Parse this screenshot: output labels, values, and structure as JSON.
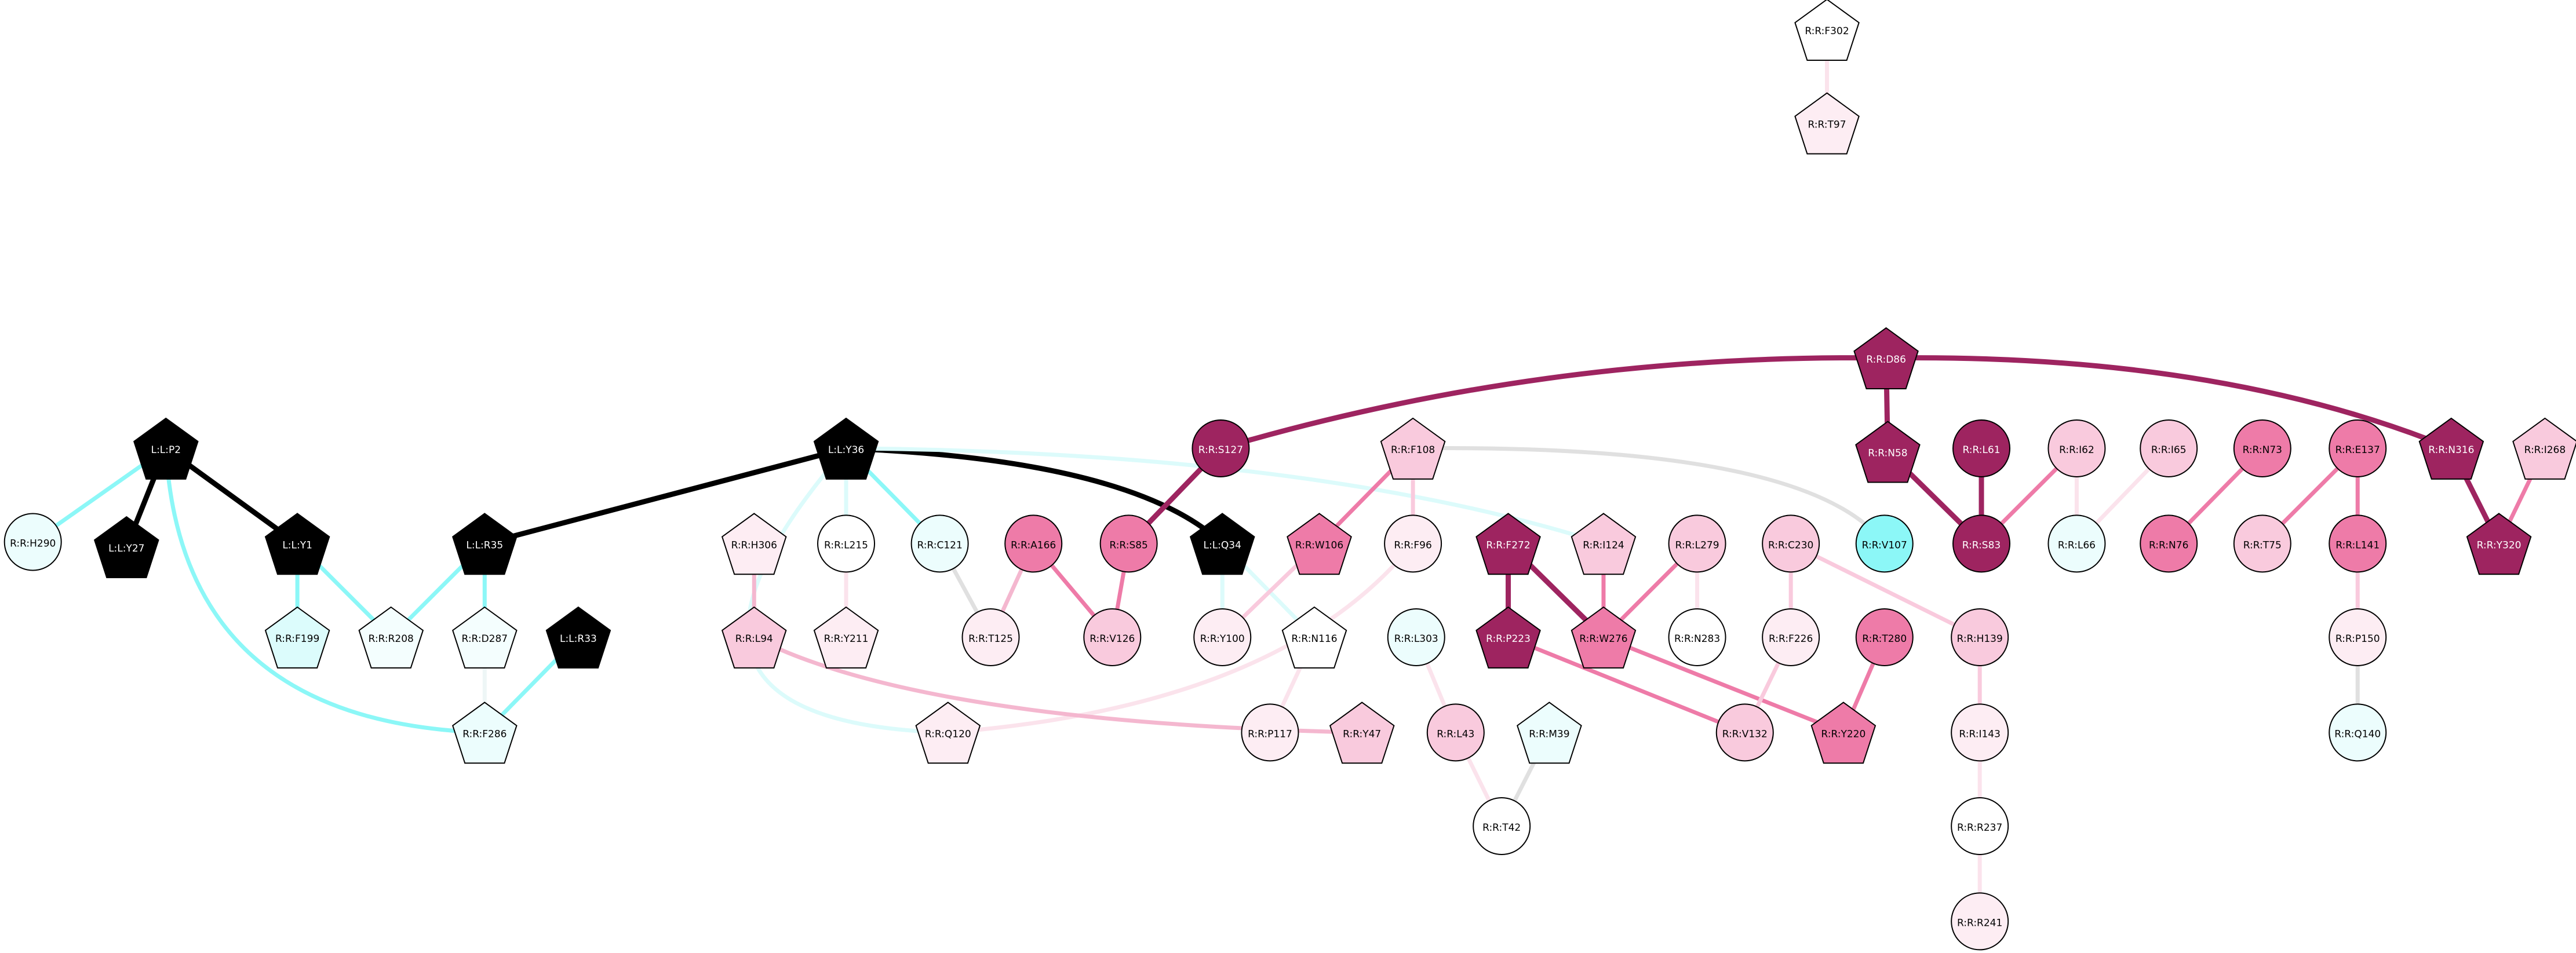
{
  "nodes": [
    {
      "label": "R:R:F302",
      "shape": "pentagon",
      "fill": "#ffffff"
    },
    {
      "label": "R:R:T97",
      "shape": "pentagon",
      "fill": "#fdedf3"
    },
    {
      "label": "R:R:D86",
      "shape": "pentagon",
      "fill": "#9e2460"
    },
    {
      "label": "L:L:P2",
      "shape": "pentagon",
      "fill": "#000000"
    },
    {
      "label": "R:R:H290",
      "shape": "circle",
      "fill": "#ecfdfd"
    },
    {
      "label": "L:L:Y27",
      "shape": "pentagon",
      "fill": "#000000"
    },
    {
      "label": "L:L:Y1",
      "shape": "pentagon",
      "fill": "#000000"
    },
    {
      "label": "L:L:Y36",
      "shape": "pentagon",
      "fill": "#000000"
    },
    {
      "label": "L:L:R35",
      "shape": "pentagon",
      "fill": "#000000"
    },
    {
      "label": "R:R:S127",
      "shape": "circle",
      "fill": "#9e2460"
    },
    {
      "label": "R:R:F108",
      "shape": "pentagon",
      "fill": "#f9cadd"
    },
    {
      "label": "R:R:N58",
      "shape": "pentagon",
      "fill": "#9e2460"
    },
    {
      "label": "R:R:L61",
      "shape": "circle",
      "fill": "#9e2460"
    },
    {
      "label": "R:R:I62",
      "shape": "circle",
      "fill": "#f9cadd"
    },
    {
      "label": "R:R:I65",
      "shape": "circle",
      "fill": "#f9cadd"
    },
    {
      "label": "R:R:N73",
      "shape": "circle",
      "fill": "#ee7ba8"
    },
    {
      "label": "R:R:E137",
      "shape": "circle",
      "fill": "#ee7ba8"
    },
    {
      "label": "R:R:N316",
      "shape": "pentagon",
      "fill": "#9e2460"
    },
    {
      "label": "R:R:I268",
      "shape": "pentagon",
      "fill": "#f9cadd"
    },
    {
      "label": "R:R:H306",
      "shape": "pentagon",
      "fill": "#fdedf3"
    },
    {
      "label": "R:R:L215",
      "shape": "circle",
      "fill": "#ffffff"
    },
    {
      "label": "R:R:C121",
      "shape": "circle",
      "fill": "#ecfdfd"
    },
    {
      "label": "R:R:A166",
      "shape": "circle",
      "fill": "#ee7ba8"
    },
    {
      "label": "R:R:S85",
      "shape": "circle",
      "fill": "#ee7ba8"
    },
    {
      "label": "L:L:Q34",
      "shape": "pentagon",
      "fill": "#000000"
    },
    {
      "label": "R:R:W106",
      "shape": "pentagon",
      "fill": "#ee7ba8"
    },
    {
      "label": "R:R:F96",
      "shape": "circle",
      "fill": "#fdedf3"
    },
    {
      "label": "R:R:F272",
      "shape": "pentagon",
      "fill": "#9e2460"
    },
    {
      "label": "R:R:I124",
      "shape": "pentagon",
      "fill": "#f9cadd"
    },
    {
      "label": "R:R:L279",
      "shape": "circle",
      "fill": "#f9cadd"
    },
    {
      "label": "R:R:C230",
      "shape": "circle",
      "fill": "#f9cadd"
    },
    {
      "label": "R:R:V107",
      "shape": "circle",
      "fill": "#8cf7f7"
    },
    {
      "label": "R:R:S83",
      "shape": "circle",
      "fill": "#9e2460"
    },
    {
      "label": "R:R:L66",
      "shape": "circle",
      "fill": "#ecfdfd"
    },
    {
      "label": "R:R:N76",
      "shape": "circle",
      "fill": "#ee7ba8"
    },
    {
      "label": "R:R:T75",
      "shape": "circle",
      "fill": "#f9cadd"
    },
    {
      "label": "R:R:L141",
      "shape": "circle",
      "fill": "#ee7ba8"
    },
    {
      "label": "R:R:Y320",
      "shape": "pentagon",
      "fill": "#9e2460"
    },
    {
      "label": "R:R:F199",
      "shape": "pentagon",
      "fill": "#dcfcfc"
    },
    {
      "label": "R:R:R208",
      "shape": "pentagon",
      "fill": "#f4fefe"
    },
    {
      "label": "R:R:D287",
      "shape": "pentagon",
      "fill": "#f4fefe"
    },
    {
      "label": "L:L:R33",
      "shape": "pentagon",
      "fill": "#000000"
    },
    {
      "label": "R:R:L94",
      "shape": "pentagon",
      "fill": "#f9cadd"
    },
    {
      "label": "R:R:Y211",
      "shape": "pentagon",
      "fill": "#fdedf3"
    },
    {
      "label": "R:R:T125",
      "shape": "circle",
      "fill": "#fdedf3"
    },
    {
      "label": "R:R:V126",
      "shape": "circle",
      "fill": "#f9cadd"
    },
    {
      "label": "R:R:Y100",
      "shape": "circle",
      "fill": "#fdedf3"
    },
    {
      "label": "R:R:N116",
      "shape": "pentagon",
      "fill": "#ffffff"
    },
    {
      "label": "R:R:L303",
      "shape": "circle",
      "fill": "#ecfdfd"
    },
    {
      "label": "R:R:P223",
      "shape": "pentagon",
      "fill": "#9e2460"
    },
    {
      "label": "R:R:W276",
      "shape": "pentagon",
      "fill": "#ee7ba8"
    },
    {
      "label": "R:R:N283",
      "shape": "circle",
      "fill": "#ffffff"
    },
    {
      "label": "R:R:F226",
      "shape": "circle",
      "fill": "#fdedf3"
    },
    {
      "label": "R:R:T280",
      "shape": "circle",
      "fill": "#ee7ba8"
    },
    {
      "label": "R:R:H139",
      "shape": "circle",
      "fill": "#f9cadd"
    },
    {
      "label": "R:R:P150",
      "shape": "circle",
      "fill": "#fdedf3"
    },
    {
      "label": "R:R:F286",
      "shape": "pentagon",
      "fill": "#ecfdfd"
    },
    {
      "label": "R:R:Q120",
      "shape": "pentagon",
      "fill": "#fdedf3"
    },
    {
      "label": "R:R:P117",
      "shape": "circle",
      "fill": "#fdedf3"
    },
    {
      "label": "R:R:Y47",
      "shape": "pentagon",
      "fill": "#f9cadd"
    },
    {
      "label": "R:R:L43",
      "shape": "circle",
      "fill": "#f9cadd"
    },
    {
      "label": "R:R:V132",
      "shape": "circle",
      "fill": "#f9cadd"
    },
    {
      "label": "R:R:Y220",
      "shape": "pentagon",
      "fill": "#ee7ba8"
    },
    {
      "label": "R:R:I143",
      "shape": "circle",
      "fill": "#fdedf3"
    },
    {
      "label": "R:R:Q140",
      "shape": "circle",
      "fill": "#ecfdfd"
    },
    {
      "label": "R:R:M39",
      "shape": "pentagon",
      "fill": "#ecfdfd"
    },
    {
      "label": "R:R:T42",
      "shape": "circle",
      "fill": "#ffffff"
    },
    {
      "label": "R:R:R237",
      "shape": "circle",
      "fill": "#ffffff"
    },
    {
      "label": "R:R:R241",
      "shape": "circle",
      "fill": "#fdedf3"
    }
  ],
  "edges": [
    {
      "source": 0,
      "target": 1,
      "color": "#fbe3ec"
    },
    {
      "source": 2,
      "target": 9,
      "color": "#9e2460"
    },
    {
      "source": 2,
      "target": 11,
      "color": "#9e2460"
    },
    {
      "source": 2,
      "target": 17,
      "color": "#9e2460"
    },
    {
      "source": 3,
      "target": 4,
      "color": "#8cf7f7"
    },
    {
      "source": 3,
      "target": 5,
      "color": "#000000"
    },
    {
      "source": 3,
      "target": 6,
      "color": "#000000"
    },
    {
      "source": 3,
      "target": 56,
      "color": "#8cf7f7"
    },
    {
      "source": 6,
      "target": 38,
      "color": "#8cf7f7"
    },
    {
      "source": 6,
      "target": 39,
      "color": "#8cf7f7"
    },
    {
      "source": 8,
      "target": 39,
      "color": "#8cf7f7"
    },
    {
      "source": 8,
      "target": 40,
      "color": "#8cf7f7"
    },
    {
      "source": 8,
      "target": 7,
      "color": "#000000"
    },
    {
      "source": 40,
      "target": 56,
      "color": "#eef6f6"
    },
    {
      "source": 41,
      "target": 56,
      "color": "#8cf7f7"
    },
    {
      "source": 7,
      "target": 20,
      "color": "#dcfbfb"
    },
    {
      "source": 7,
      "target": 21,
      "color": "#8cf7f7"
    },
    {
      "source": 7,
      "target": 24,
      "color": "#000000"
    },
    {
      "source": 7,
      "target": 28,
      "color": "#dcfbfb"
    },
    {
      "source": 7,
      "target": 57,
      "color": "#dcfbfb"
    },
    {
      "source": 19,
      "target": 42,
      "color": "#f4b7cf"
    },
    {
      "source": 20,
      "target": 43,
      "color": "#fbe3ec"
    },
    {
      "source": 21,
      "target": 44,
      "color": "#e0e0e0"
    },
    {
      "source": 22,
      "target": 44,
      "color": "#f4b7cf"
    },
    {
      "source": 22,
      "target": 45,
      "color": "#ee7ba8"
    },
    {
      "source": 23,
      "target": 45,
      "color": "#ee7ba8"
    },
    {
      "source": 9,
      "target": 23,
      "color": "#9e2460"
    },
    {
      "source": 24,
      "target": 46,
      "color": "#dcfbfb"
    },
    {
      "source": 24,
      "target": 47,
      "color": "#dcfbfb"
    },
    {
      "source": 25,
      "target": 46,
      "color": "#f9cadd"
    },
    {
      "source": 10,
      "target": 25,
      "color": "#ee7ba8"
    },
    {
      "source": 10,
      "target": 26,
      "color": "#f9cadd"
    },
    {
      "source": 10,
      "target": 31,
      "color": "#e0e0e0"
    },
    {
      "source": 26,
      "target": 57,
      "color": "#fbe3ec"
    },
    {
      "source": 42,
      "target": 59,
      "color": "#f4b7cf"
    },
    {
      "source": 47,
      "target": 58,
      "color": "#fbe3ec"
    },
    {
      "source": 48,
      "target": 60,
      "color": "#fbe3ec"
    },
    {
      "source": 65,
      "target": 66,
      "color": "#e0e0e0"
    },
    {
      "source": 60,
      "target": 66,
      "color": "#fbe3ec"
    },
    {
      "source": 27,
      "target": 49,
      "color": "#9e2460"
    },
    {
      "source": 27,
      "target": 50,
      "color": "#9e2460"
    },
    {
      "source": 28,
      "target": 50,
      "color": "#ee7ba8"
    },
    {
      "source": 29,
      "target": 50,
      "color": "#ee7ba8"
    },
    {
      "source": 29,
      "target": 51,
      "color": "#fbe3ec"
    },
    {
      "source": 49,
      "target": 61,
      "color": "#ee7ba8"
    },
    {
      "source": 50,
      "target": 62,
      "color": "#ee7ba8"
    },
    {
      "source": 53,
      "target": 62,
      "color": "#ee7ba8"
    },
    {
      "source": 30,
      "target": 52,
      "color": "#f9cadd"
    },
    {
      "source": 30,
      "target": 54,
      "color": "#f9cadd"
    },
    {
      "source": 52,
      "target": 61,
      "color": "#f9cadd"
    },
    {
      "source": 54,
      "target": 63,
      "color": "#f9cadd"
    },
    {
      "source": 63,
      "target": 67,
      "color": "#fbe3ec"
    },
    {
      "source": 67,
      "target": 68,
      "color": "#fbe3ec"
    },
    {
      "source": 11,
      "target": 32,
      "color": "#9e2460"
    },
    {
      "source": 12,
      "target": 32,
      "color": "#9e2460"
    },
    {
      "source": 13,
      "target": 32,
      "color": "#ee7ba8"
    },
    {
      "source": 13,
      "target": 33,
      "color": "#fbe3ec"
    },
    {
      "source": 14,
      "target": 33,
      "color": "#fbe3ec"
    },
    {
      "source": 15,
      "target": 34,
      "color": "#ee7ba8"
    },
    {
      "source": 16,
      "target": 35,
      "color": "#ee7ba8"
    },
    {
      "source": 16,
      "target": 36,
      "color": "#ee7ba8"
    },
    {
      "source": 17,
      "target": 37,
      "color": "#9e2460"
    },
    {
      "source": 18,
      "target": 37,
      "color": "#ee7ba8"
    },
    {
      "source": 36,
      "target": 55,
      "color": "#f9cadd"
    },
    {
      "source": 55,
      "target": 64,
      "color": "#e0e0e0"
    }
  ]
}
